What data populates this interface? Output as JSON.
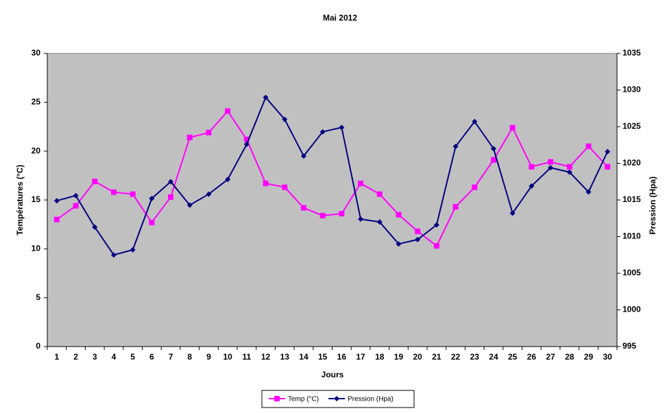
{
  "chart_data": {
    "type": "line",
    "title": "Mai 2012",
    "x_label": "Jours",
    "y_label": "Températures (°C)",
    "y2_label": "Pression (Hpa)",
    "categories": [
      "1",
      "2",
      "3",
      "4",
      "5",
      "6",
      "7",
      "8",
      "9",
      "10",
      "11",
      "12",
      "13",
      "14",
      "15",
      "16",
      "17",
      "18",
      "19",
      "20",
      "21",
      "22",
      "23",
      "24",
      "25",
      "26",
      "27",
      "28",
      "29",
      "30"
    ],
    "ylim": [
      0,
      30
    ],
    "yticks": [
      0,
      5,
      10,
      15,
      20,
      25,
      30
    ],
    "y2lim": [
      995,
      1035
    ],
    "y2ticks": [
      995,
      1000,
      1005,
      1010,
      1015,
      1020,
      1025,
      1030,
      1035
    ],
    "legend": "bottom",
    "plot_background": "#c0c0c0",
    "series": [
      {
        "name": "Temp (°C)",
        "color": "#ff00ff",
        "marker": "square",
        "values": [
          13.0,
          14.4,
          16.9,
          15.8,
          15.6,
          12.7,
          15.3,
          21.4,
          21.9,
          24.1,
          21.2,
          16.7,
          16.3,
          14.2,
          13.4,
          13.6,
          16.7,
          15.6,
          13.5,
          11.8,
          10.3,
          14.3,
          16.3,
          19.1,
          22.4,
          18.4,
          18.9,
          18.4,
          20.5,
          18.4
        ]
      },
      {
        "name": "Pression (Hpa)",
        "color": "#000080",
        "marker": "diamond",
        "axis": "y2",
        "values": [
          1014.9,
          1015.6,
          1011.3,
          1007.5,
          1008.2,
          1015.2,
          1017.5,
          1014.3,
          1015.8,
          1017.8,
          1022.6,
          1029.0,
          1026.0,
          1021.0,
          1024.3,
          1024.9,
          1012.4,
          1012.0,
          1009.0,
          1009.6,
          1011.6,
          1022.3,
          1025.7,
          1022.0,
          1013.2,
          1016.9,
          1019.4,
          1018.8,
          1016.1,
          1021.6
        ]
      }
    ]
  }
}
